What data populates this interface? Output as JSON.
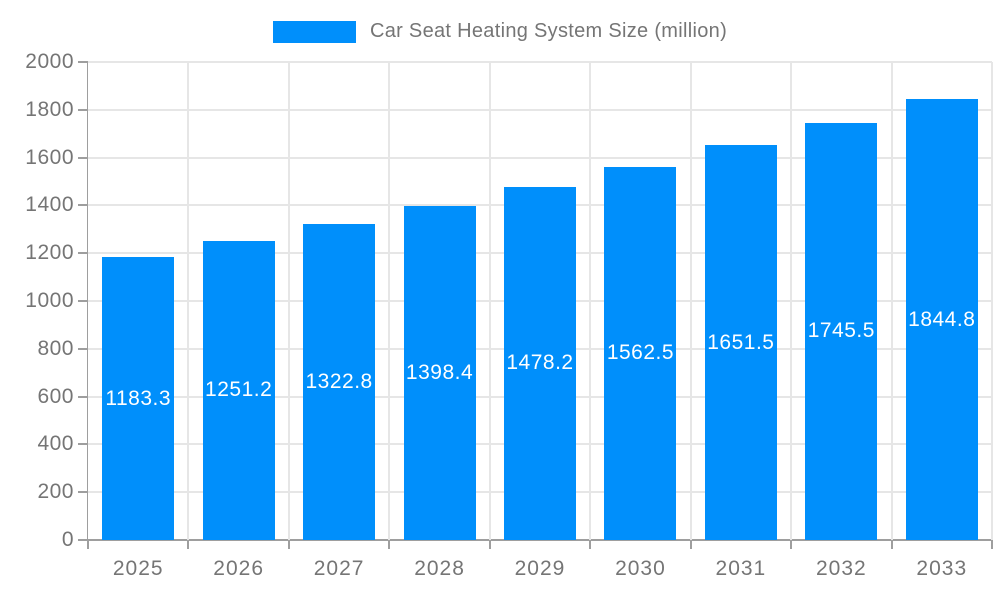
{
  "legend": {
    "label": "Car Seat Heating System Size (million)"
  },
  "chart_data": {
    "type": "bar",
    "title": "Car Seat Heating System Size (million)",
    "categories": [
      "2025",
      "2026",
      "2027",
      "2028",
      "2029",
      "2030",
      "2031",
      "2032",
      "2033"
    ],
    "values": [
      1183.3,
      1251.2,
      1322.8,
      1398.4,
      1478.2,
      1562.5,
      1651.5,
      1745.5,
      1844.8
    ],
    "series_name": "Car Seat Heating System Size (million)",
    "xlabel": "",
    "ylabel": "",
    "ylim": [
      0,
      2000
    ],
    "y_ticks": [
      0,
      200,
      400,
      600,
      800,
      1000,
      1200,
      1400,
      1600,
      1800,
      2000
    ],
    "grid": "both",
    "legend_position": "top",
    "value_label_position": "inside-center",
    "value_label_decimals": 1
  },
  "colors": {
    "bar": "#008FFB",
    "grid": "#e6e6e6",
    "axis": "#9e9e9e",
    "tick_label": "#757575",
    "value_label": "#ffffff",
    "background": "#ffffff"
  }
}
